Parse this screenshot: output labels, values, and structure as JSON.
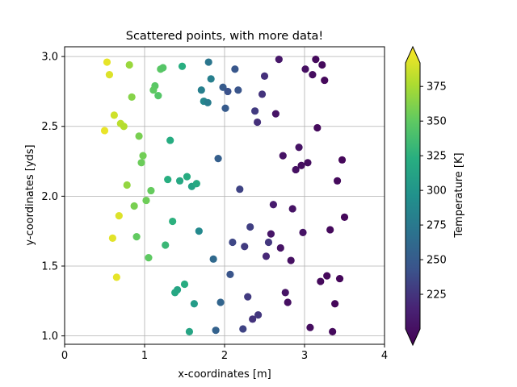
{
  "chart_data": {
    "type": "scatter",
    "title": "Scattered points, with more data!",
    "xlabel": "x-coordinates [m]",
    "ylabel": "y-coordinates [yds]",
    "xlim": [
      0,
      4
    ],
    "ylim": [
      0.94,
      3.07
    ],
    "xticks": [
      0,
      1,
      2,
      3,
      4
    ],
    "yticks": [
      1.0,
      1.5,
      2.0,
      2.5,
      3.0
    ],
    "xtick_labels": [
      "0",
      "1",
      "2",
      "3",
      "4"
    ],
    "ytick_labels": [
      "1.0",
      "1.5",
      "2.0",
      "2.5",
      "3.0"
    ],
    "grid": true,
    "colorbar": {
      "label": "Temperature [K]",
      "colormap": "viridis",
      "range": [
        200,
        392
      ],
      "ticks": [
        225,
        250,
        275,
        300,
        325,
        350,
        375
      ],
      "tick_labels": [
        "225",
        "250",
        "275",
        "300",
        "325",
        "350",
        "375"
      ],
      "extend": "both"
    },
    "points": [
      {
        "x": 0.53,
        "y": 2.96,
        "c": 385
      },
      {
        "x": 0.56,
        "y": 2.87,
        "c": 382
      },
      {
        "x": 0.81,
        "y": 2.94,
        "c": 362
      },
      {
        "x": 0.84,
        "y": 2.71,
        "c": 356
      },
      {
        "x": 0.62,
        "y": 2.58,
        "c": 378
      },
      {
        "x": 0.7,
        "y": 2.52,
        "c": 372
      },
      {
        "x": 0.74,
        "y": 2.5,
        "c": 370
      },
      {
        "x": 0.5,
        "y": 2.47,
        "c": 386
      },
      {
        "x": 0.93,
        "y": 2.43,
        "c": 352
      },
      {
        "x": 0.98,
        "y": 2.29,
        "c": 350
      },
      {
        "x": 0.96,
        "y": 2.24,
        "c": 348
      },
      {
        "x": 0.78,
        "y": 2.08,
        "c": 360
      },
      {
        "x": 1.08,
        "y": 2.04,
        "c": 346
      },
      {
        "x": 1.02,
        "y": 1.97,
        "c": 349
      },
      {
        "x": 0.87,
        "y": 1.93,
        "c": 352
      },
      {
        "x": 0.68,
        "y": 1.86,
        "c": 382
      },
      {
        "x": 0.9,
        "y": 1.71,
        "c": 345
      },
      {
        "x": 0.6,
        "y": 1.7,
        "c": 384
      },
      {
        "x": 1.05,
        "y": 1.56,
        "c": 344
      },
      {
        "x": 0.65,
        "y": 1.42,
        "c": 385
      },
      {
        "x": 1.2,
        "y": 2.91,
        "c": 342
      },
      {
        "x": 1.23,
        "y": 2.92,
        "c": 340
      },
      {
        "x": 1.13,
        "y": 2.79,
        "c": 342
      },
      {
        "x": 1.11,
        "y": 2.76,
        "c": 344
      },
      {
        "x": 1.17,
        "y": 2.72,
        "c": 340
      },
      {
        "x": 1.47,
        "y": 2.93,
        "c": 320
      },
      {
        "x": 1.32,
        "y": 2.4,
        "c": 318
      },
      {
        "x": 1.29,
        "y": 2.12,
        "c": 320
      },
      {
        "x": 1.44,
        "y": 2.11,
        "c": 315
      },
      {
        "x": 1.53,
        "y": 2.14,
        "c": 318
      },
      {
        "x": 1.59,
        "y": 2.07,
        "c": 310
      },
      {
        "x": 1.65,
        "y": 2.09,
        "c": 316
      },
      {
        "x": 1.35,
        "y": 1.82,
        "c": 322
      },
      {
        "x": 1.26,
        "y": 1.65,
        "c": 328
      },
      {
        "x": 1.5,
        "y": 1.37,
        "c": 318
      },
      {
        "x": 1.41,
        "y": 1.33,
        "c": 312
      },
      {
        "x": 1.38,
        "y": 1.31,
        "c": 314
      },
      {
        "x": 1.62,
        "y": 1.23,
        "c": 305
      },
      {
        "x": 1.56,
        "y": 1.03,
        "c": 312
      },
      {
        "x": 1.68,
        "y": 1.75,
        "c": 290
      },
      {
        "x": 1.8,
        "y": 2.96,
        "c": 275
      },
      {
        "x": 1.83,
        "y": 2.84,
        "c": 282
      },
      {
        "x": 1.71,
        "y": 2.76,
        "c": 282
      },
      {
        "x": 1.74,
        "y": 2.68,
        "c": 288
      },
      {
        "x": 1.79,
        "y": 2.67,
        "c": 280
      },
      {
        "x": 1.98,
        "y": 2.78,
        "c": 255
      },
      {
        "x": 2.04,
        "y": 2.75,
        "c": 248
      },
      {
        "x": 2.17,
        "y": 2.76,
        "c": 250
      },
      {
        "x": 2.13,
        "y": 2.91,
        "c": 252
      },
      {
        "x": 2.01,
        "y": 2.63,
        "c": 255
      },
      {
        "x": 1.92,
        "y": 2.27,
        "c": 258
      },
      {
        "x": 2.19,
        "y": 2.05,
        "c": 240
      },
      {
        "x": 2.32,
        "y": 1.78,
        "c": 238
      },
      {
        "x": 2.1,
        "y": 1.67,
        "c": 242
      },
      {
        "x": 2.25,
        "y": 1.64,
        "c": 236
      },
      {
        "x": 1.86,
        "y": 1.55,
        "c": 265
      },
      {
        "x": 2.07,
        "y": 1.44,
        "c": 250
      },
      {
        "x": 2.29,
        "y": 1.28,
        "c": 236
      },
      {
        "x": 1.95,
        "y": 1.24,
        "c": 262
      },
      {
        "x": 2.35,
        "y": 1.12,
        "c": 232
      },
      {
        "x": 2.42,
        "y": 1.15,
        "c": 234
      },
      {
        "x": 2.23,
        "y": 1.05,
        "c": 240
      },
      {
        "x": 1.89,
        "y": 1.04,
        "c": 260
      },
      {
        "x": 2.38,
        "y": 2.61,
        "c": 236
      },
      {
        "x": 2.41,
        "y": 2.53,
        "c": 230
      },
      {
        "x": 2.47,
        "y": 2.73,
        "c": 232
      },
      {
        "x": 2.5,
        "y": 2.86,
        "c": 230
      },
      {
        "x": 2.55,
        "y": 1.67,
        "c": 234
      },
      {
        "x": 2.52,
        "y": 1.57,
        "c": 226
      },
      {
        "x": 2.68,
        "y": 2.98,
        "c": 215
      },
      {
        "x": 2.64,
        "y": 2.59,
        "c": 212
      },
      {
        "x": 2.73,
        "y": 2.29,
        "c": 212
      },
      {
        "x": 2.61,
        "y": 1.94,
        "c": 218
      },
      {
        "x": 2.58,
        "y": 1.73,
        "c": 214
      },
      {
        "x": 2.7,
        "y": 1.63,
        "c": 212
      },
      {
        "x": 2.85,
        "y": 1.91,
        "c": 212
      },
      {
        "x": 2.83,
        "y": 1.54,
        "c": 210
      },
      {
        "x": 2.76,
        "y": 1.31,
        "c": 212
      },
      {
        "x": 2.79,
        "y": 1.24,
        "c": 210
      },
      {
        "x": 2.93,
        "y": 2.35,
        "c": 212
      },
      {
        "x": 2.89,
        "y": 2.19,
        "c": 210
      },
      {
        "x": 2.96,
        "y": 2.22,
        "c": 208
      },
      {
        "x": 3.04,
        "y": 2.24,
        "c": 208
      },
      {
        "x": 2.98,
        "y": 1.74,
        "c": 212
      },
      {
        "x": 3.01,
        "y": 2.91,
        "c": 210
      },
      {
        "x": 3.1,
        "y": 2.87,
        "c": 208
      },
      {
        "x": 3.14,
        "y": 2.98,
        "c": 206
      },
      {
        "x": 3.22,
        "y": 2.94,
        "c": 206
      },
      {
        "x": 3.25,
        "y": 2.83,
        "c": 205
      },
      {
        "x": 3.16,
        "y": 2.49,
        "c": 206
      },
      {
        "x": 3.41,
        "y": 2.11,
        "c": 206
      },
      {
        "x": 3.47,
        "y": 2.26,
        "c": 204
      },
      {
        "x": 3.5,
        "y": 1.85,
        "c": 204
      },
      {
        "x": 3.32,
        "y": 1.76,
        "c": 206
      },
      {
        "x": 3.2,
        "y": 1.39,
        "c": 206
      },
      {
        "x": 3.28,
        "y": 1.43,
        "c": 205
      },
      {
        "x": 3.44,
        "y": 1.41,
        "c": 204
      },
      {
        "x": 3.38,
        "y": 1.23,
        "c": 204
      },
      {
        "x": 3.07,
        "y": 1.06,
        "c": 208
      },
      {
        "x": 3.35,
        "y": 1.03,
        "c": 206
      }
    ]
  }
}
